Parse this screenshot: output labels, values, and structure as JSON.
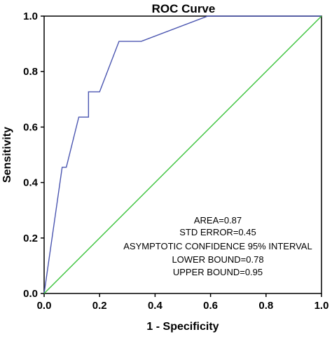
{
  "chart_data": {
    "type": "line",
    "title": "ROC Curve",
    "xlabel": "1 - Specificity",
    "ylabel": "Sensitivity",
    "xlim": [
      0,
      1
    ],
    "ylim": [
      0,
      1
    ],
    "x_ticks": [
      "0.0",
      "0.2",
      "0.4",
      "0.6",
      "0.8",
      "1.0"
    ],
    "y_ticks": [
      "0.0",
      "0.2",
      "0.4",
      "0.6",
      "0.8",
      "1.0"
    ],
    "grid": false,
    "series": [
      {
        "color": "#4a55b0",
        "points": [
          [
            0.0,
            0.0
          ],
          [
            0.065,
            0.455
          ],
          [
            0.08,
            0.455
          ],
          [
            0.125,
            0.636
          ],
          [
            0.16,
            0.636
          ],
          [
            0.16,
            0.727
          ],
          [
            0.2,
            0.727
          ],
          [
            0.27,
            0.909
          ],
          [
            0.35,
            0.909
          ],
          [
            0.59,
            1.0
          ],
          [
            1.0,
            1.0
          ]
        ]
      },
      {
        "color": "#3cc43c",
        "points": [
          [
            0.0,
            0.0
          ],
          [
            1.0,
            1.0
          ]
        ]
      }
    ],
    "annotations": [
      "AREA=0.87",
      "STD ERROR=0.45",
      "ASYMPTOTIC CONFIDENCE 95% INTERVAL",
      "LOWER BOUND=0.78",
      "UPPER BOUND=0.95"
    ]
  }
}
